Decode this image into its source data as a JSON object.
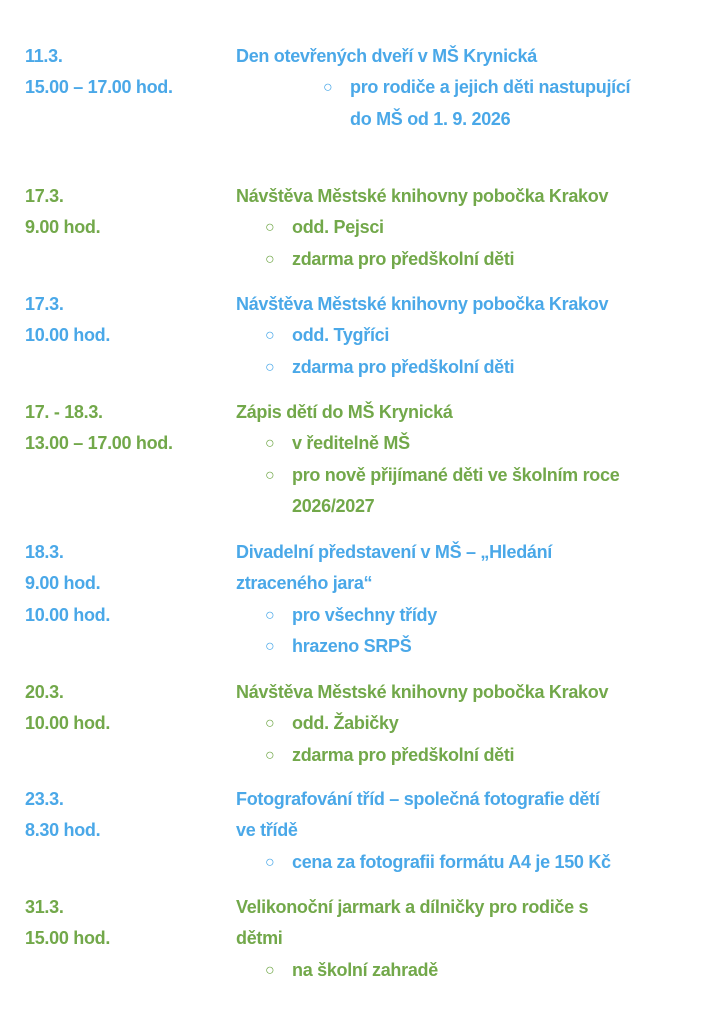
{
  "colors": {
    "blue": "#4aa8e8",
    "green": "#72a84a"
  },
  "bullet_icon": "○",
  "events": [
    {
      "color": "blue",
      "deep": true,
      "when": [
        "11.3.",
        "15.00 – 17.00 hod."
      ],
      "title": [
        "Den otevřených dveří v MŠ Krynická"
      ],
      "bullets": [
        [
          "pro rodiče a jejich děti nastupující",
          "do MŠ od 1. 9. 2026"
        ]
      ]
    },
    {
      "color": "green",
      "when": [
        "17.3.",
        "9.00 hod."
      ],
      "title": [
        "Návštěva Městské knihovny pobočka Krakov"
      ],
      "bullets": [
        [
          "odd. Pejsci"
        ],
        [
          "zdarma pro předškolní děti"
        ]
      ]
    },
    {
      "color": "blue",
      "when": [
        "17.3.",
        "10.00 hod."
      ],
      "title": [
        "Návštěva Městské knihovny pobočka Krakov"
      ],
      "bullets": [
        [
          "odd. Tygříci"
        ],
        [
          "zdarma pro předškolní děti"
        ]
      ]
    },
    {
      "color": "green",
      "when": [
        "17. -  18.3.",
        "13.00 – 17.00 hod."
      ],
      "title": [
        "Zápis dětí do MŠ Krynická"
      ],
      "bullets": [
        [
          "v ředitelně MŠ"
        ],
        [
          "pro nově přijímané děti ve školním roce",
          "2026/2027"
        ]
      ]
    },
    {
      "color": "blue",
      "when": [
        "18.3.",
        "9.00 hod.",
        "10.00 hod."
      ],
      "title": [
        "Divadelní představení v MŠ – „Hledání",
        "ztraceného jara“"
      ],
      "bullets": [
        [
          "pro všechny třídy"
        ],
        [
          "hrazeno SRPŠ"
        ]
      ]
    },
    {
      "color": "green",
      "when": [
        "20.3.",
        "10.00 hod."
      ],
      "title": [
        "Návštěva Městské knihovny pobočka Krakov"
      ],
      "bullets": [
        [
          "odd. Žabičky"
        ],
        [
          "zdarma pro předškolní děti"
        ]
      ]
    },
    {
      "color": "blue",
      "when": [
        "23.3.",
        "8.30 hod."
      ],
      "title": [
        "Fotografování tříd – společná fotografie dětí",
        "ve třídě"
      ],
      "bullets": [
        [
          "cena za fotografii formátu A4 je 150 Kč"
        ]
      ]
    },
    {
      "color": "green",
      "when": [
        "31.3.",
        "15.00 hod."
      ],
      "title": [
        "Velikonoční jarmark a dílničky pro rodiče s",
        "dětmi"
      ],
      "bullets": [
        [
          "na školní zahradě"
        ]
      ]
    }
  ]
}
